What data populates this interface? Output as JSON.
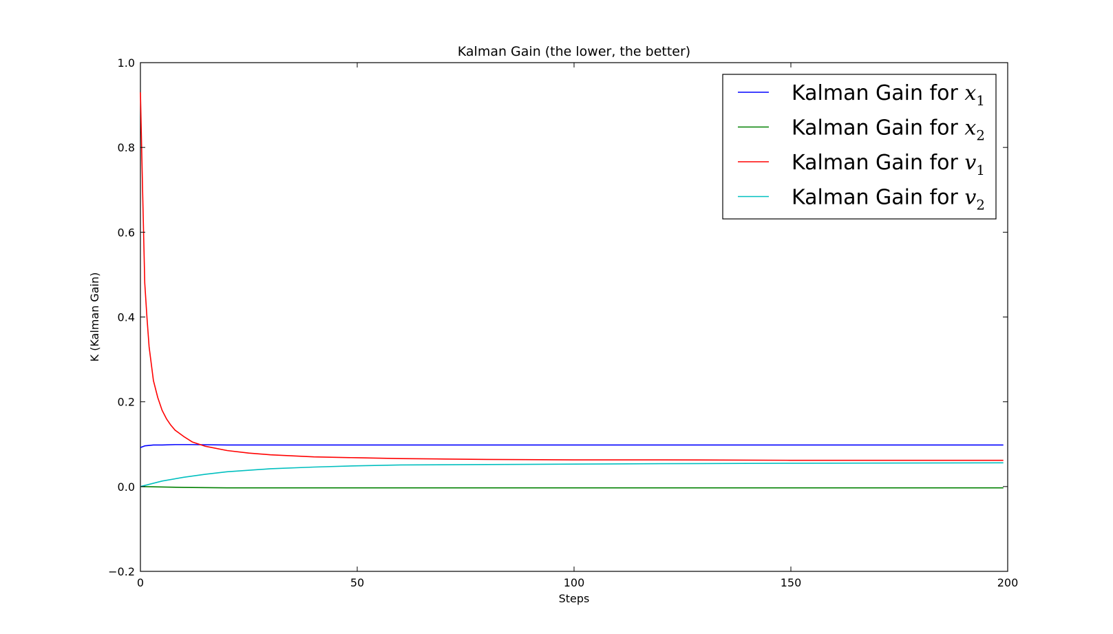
{
  "chart_data": {
    "type": "line",
    "title": "Kalman Gain (the lower, the better)",
    "xlabel": "Steps",
    "ylabel": "K (Kalman Gain)",
    "xlim": [
      0,
      200
    ],
    "ylim": [
      -0.2,
      1.0
    ],
    "xticks": [
      0,
      50,
      100,
      150,
      200
    ],
    "yticks": [
      -0.2,
      0.0,
      0.2,
      0.4,
      0.6,
      0.8,
      1.0
    ],
    "xtick_labels": [
      "0",
      "50",
      "100",
      "150",
      "200"
    ],
    "ytick_labels": [
      "−0.2",
      "0.0",
      "0.2",
      "0.4",
      "0.6",
      "0.8",
      "1.0"
    ],
    "grid": false,
    "legend_position": "top-right",
    "series": [
      {
        "name": "Kalman Gain for x",
        "symbol": "x",
        "subscript": "1",
        "color": "#0000ff",
        "x": [
          0,
          1,
          2,
          3,
          5,
          8,
          12,
          20,
          40,
          80,
          120,
          160,
          199
        ],
        "y": [
          0.092,
          0.096,
          0.097,
          0.098,
          0.098,
          0.099,
          0.099,
          0.098,
          0.098,
          0.098,
          0.098,
          0.098,
          0.098
        ]
      },
      {
        "name": "Kalman Gain for x",
        "symbol": "x",
        "subscript": "2",
        "color": "#008000",
        "x": [
          0,
          5,
          10,
          20,
          30,
          50,
          80,
          120,
          160,
          199
        ],
        "y": [
          0.0,
          -0.001,
          -0.002,
          -0.003,
          -0.003,
          -0.003,
          -0.003,
          -0.003,
          -0.003,
          -0.003
        ]
      },
      {
        "name": "Kalman Gain for v",
        "symbol": "v",
        "subscript": "1",
        "color": "#ff0000",
        "x": [
          0,
          0.5,
          1,
          1.5,
          2,
          3,
          4,
          5,
          6,
          7,
          8,
          10,
          12,
          15,
          20,
          25,
          30,
          40,
          50,
          60,
          70,
          80,
          100,
          120,
          150,
          199
        ],
        "y": [
          0.93,
          0.7,
          0.48,
          0.4,
          0.33,
          0.25,
          0.21,
          0.18,
          0.16,
          0.145,
          0.133,
          0.118,
          0.105,
          0.095,
          0.085,
          0.079,
          0.075,
          0.07,
          0.068,
          0.066,
          0.065,
          0.064,
          0.063,
          0.063,
          0.062,
          0.062
        ]
      },
      {
        "name": "Kalman Gain for v",
        "symbol": "v",
        "subscript": "2",
        "color": "#00bfbf",
        "x": [
          0,
          5,
          10,
          15,
          20,
          30,
          40,
          50,
          60,
          80,
          100,
          120,
          150,
          199
        ],
        "y": [
          0.0,
          0.013,
          0.022,
          0.029,
          0.035,
          0.042,
          0.046,
          0.049,
          0.051,
          0.052,
          0.053,
          0.054,
          0.055,
          0.056
        ]
      }
    ]
  }
}
